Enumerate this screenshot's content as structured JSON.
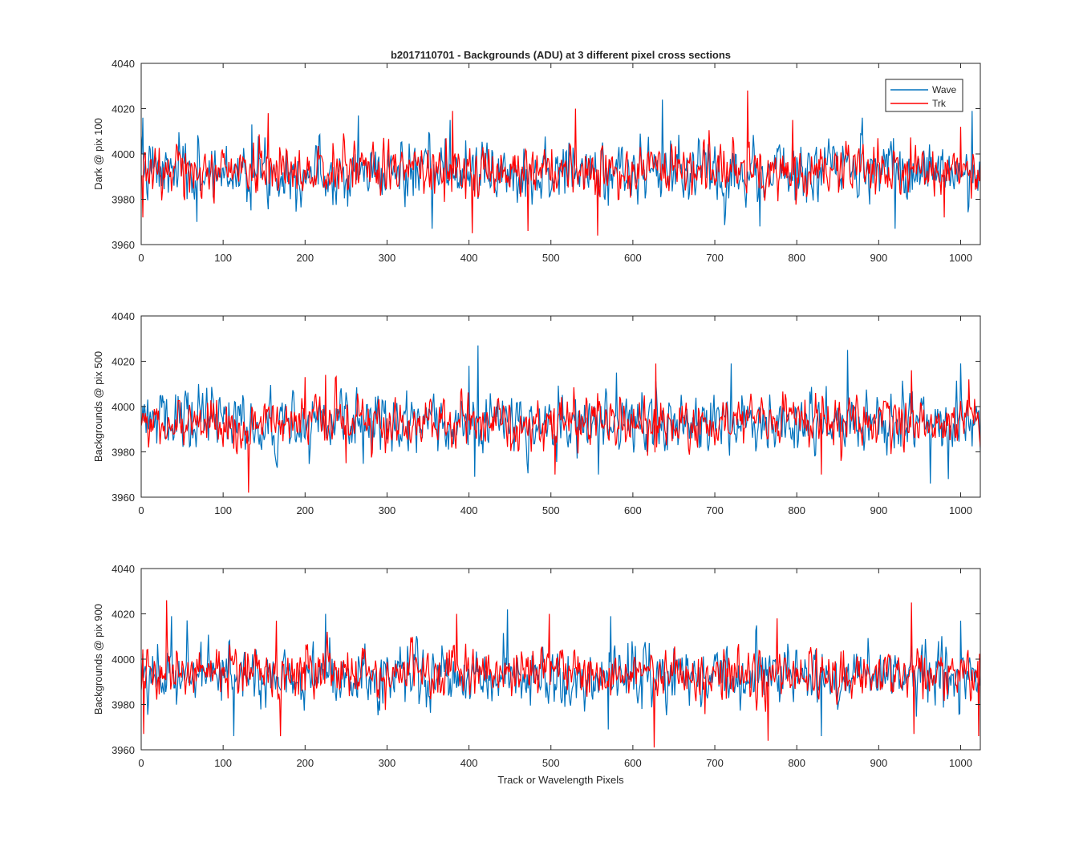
{
  "figure_title": "b2017110701 - Backgrounds (ADU) at 3 different pixel cross sections",
  "chart_data": [
    {
      "type": "line",
      "title": "b2017110701 - Backgrounds (ADU) at 3 different pixel cross sections",
      "xlabel": "",
      "ylabel": "Dark @ pix 100",
      "xlim": [
        0,
        1024
      ],
      "ylim": [
        3960,
        4040
      ],
      "xticks": [
        0,
        100,
        200,
        300,
        400,
        500,
        600,
        700,
        800,
        900,
        1000
      ],
      "yticks": [
        3960,
        3980,
        4000,
        4020,
        4040
      ],
      "grid": false,
      "legend": "top-right",
      "series": [
        {
          "name": "Wave",
          "color": "#0072BD",
          "mean": 3992,
          "std": 7,
          "spikes": [
            [
              2,
              4016
            ],
            [
              135,
              4013
            ],
            [
              265,
              4017
            ],
            [
              377,
              4015
            ],
            [
              636,
              4024
            ],
            [
              880,
              4016
            ],
            [
              1014,
              4019
            ]
          ],
          "dips": [
            [
              68,
              3970
            ],
            [
              355,
              3967
            ],
            [
              755,
              3968
            ],
            [
              920,
              3967
            ]
          ]
        },
        {
          "name": "Trk",
          "color": "#FF0000",
          "mean": 3993,
          "std": 6,
          "spikes": [
            [
              155,
              4018
            ],
            [
              380,
              4019
            ],
            [
              530,
              4020
            ],
            [
              740,
              4028
            ],
            [
              795,
              4015
            ],
            [
              1000,
              4012
            ]
          ],
          "dips": [
            [
              2,
              3972
            ],
            [
              404,
              3965
            ],
            [
              472,
              3966
            ],
            [
              557,
              3964
            ],
            [
              980,
              3972
            ]
          ]
        }
      ]
    },
    {
      "type": "line",
      "title": "",
      "xlabel": "",
      "ylabel": "Backgrounds @ pix 500",
      "xlim": [
        0,
        1024
      ],
      "ylim": [
        3960,
        4040
      ],
      "xticks": [
        0,
        100,
        200,
        300,
        400,
        500,
        600,
        700,
        800,
        900,
        1000
      ],
      "yticks": [
        3960,
        3980,
        4000,
        4020,
        4040
      ],
      "grid": false,
      "series": [
        {
          "name": "Wave",
          "color": "#0072BD",
          "mean": 3993,
          "std": 7,
          "spikes": [
            [
              400,
              4018
            ],
            [
              411,
              4027
            ],
            [
              580,
              4015
            ],
            [
              720,
              4019
            ],
            [
              862,
              4025
            ],
            [
              1000,
              4019
            ]
          ],
          "dips": [
            [
              407,
              3969
            ],
            [
              558,
              3970
            ],
            [
              963,
              3966
            ],
            [
              985,
              3968
            ]
          ]
        },
        {
          "name": "Trk",
          "color": "#FF0000",
          "mean": 3993,
          "std": 6,
          "spikes": [
            [
              200,
              4013
            ],
            [
              225,
              4014
            ],
            [
              505,
              4015
            ],
            [
              628,
              4019
            ],
            [
              940,
              4016
            ],
            [
              1010,
              4012
            ]
          ],
          "dips": [
            [
              131,
              3962
            ],
            [
              250,
              3975
            ],
            [
              505,
              3970
            ],
            [
              830,
              3970
            ]
          ]
        }
      ]
    },
    {
      "type": "line",
      "title": "",
      "xlabel": "Track or Wavelength Pixels",
      "ylabel": "Backgrounds @ pix 900",
      "xlim": [
        0,
        1024
      ],
      "ylim": [
        3960,
        4040
      ],
      "xticks": [
        0,
        100,
        200,
        300,
        400,
        500,
        600,
        700,
        800,
        900,
        1000
      ],
      "yticks": [
        3960,
        3980,
        4000,
        4020,
        4040
      ],
      "grid": false,
      "series": [
        {
          "name": "Wave",
          "color": "#0072BD",
          "mean": 3993,
          "std": 7,
          "spikes": [
            [
              37,
              4019
            ],
            [
              225,
              4020
            ],
            [
              447,
              4022
            ],
            [
              573,
              4019
            ],
            [
              1000,
              4017
            ]
          ],
          "dips": [
            [
              113,
              3966
            ],
            [
              570,
              3969
            ],
            [
              830,
              3966
            ]
          ]
        },
        {
          "name": "Trk",
          "color": "#FF0000",
          "mean": 3994,
          "std": 6,
          "spikes": [
            [
              31,
              4026
            ],
            [
              165,
              4017
            ],
            [
              385,
              4020
            ],
            [
              498,
              4020
            ],
            [
              776,
              4018
            ],
            [
              940,
              4025
            ]
          ],
          "dips": [
            [
              3,
              3967
            ],
            [
              170,
              3966
            ],
            [
              626,
              3961
            ],
            [
              765,
              3964
            ],
            [
              943,
              3967
            ],
            [
              1022,
              3966
            ]
          ]
        }
      ]
    }
  ],
  "legend": {
    "entries": [
      "Wave",
      "Trk"
    ]
  }
}
